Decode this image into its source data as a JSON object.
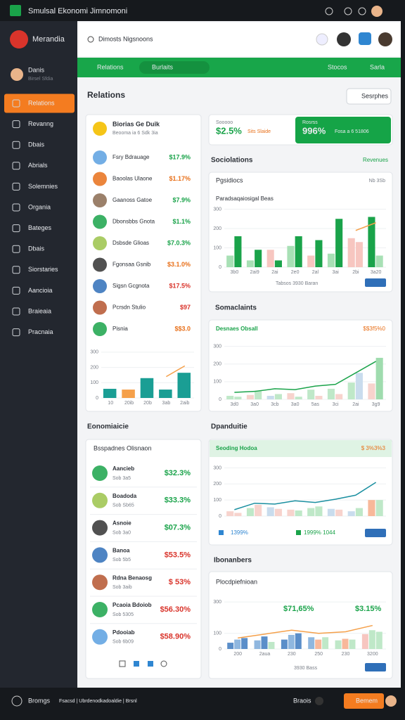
{
  "titlebar": {
    "title": "Smulsal Ekonomi Jimnomoni"
  },
  "sidebar": {
    "brand": "Merandia",
    "user": {
      "name": "Danis",
      "role": "Birsel Sfdia"
    },
    "items": [
      "Relations",
      "Revanng",
      "Dbais",
      "Abrials",
      "Solemnies",
      "Organia",
      "Bateges",
      "Dbais",
      "Siorstaries",
      "Aancioia",
      "Braieaia",
      "Pracnaia"
    ]
  },
  "topbar": {
    "search": "Dimosts Nigsnoons"
  },
  "greenbar": {
    "left": "Relations",
    "pill": "Burlaits",
    "right": [
      "Stocos",
      "Sarla"
    ]
  },
  "page": {
    "title": "Relations",
    "search": "Sesrphes"
  },
  "contacts": {
    "title": "Biorias Ge Duik",
    "subtitle": "Beooma ia 6 Sdk 3ia",
    "rows": [
      {
        "name": "Fsry Bdrauage",
        "value": "$17.9%",
        "color": "#1aa34a"
      },
      {
        "name": "Baoolas Ulaone",
        "value": "$1.17%",
        "color": "#e8701a"
      },
      {
        "name": "Gaanoss Gatoe",
        "value": "$7.9%",
        "color": "#1aa34a"
      },
      {
        "name": "Dbonsbbs Gnota",
        "value": "$1.1%",
        "color": "#1aa34a"
      },
      {
        "name": "Dsbsde Glioas",
        "value": "$7.0.3%",
        "color": "#1aa34a"
      },
      {
        "name": "Fgonsaa Gsnib",
        "value": "$3.1.0%",
        "color": "#e8701a"
      },
      {
        "name": "Sigsn Gcgnota",
        "value": "$17.5%",
        "color": "#d9342b"
      },
      {
        "name": "Pcrsdn Stulio",
        "value": "$97",
        "color": "#d9342b"
      },
      {
        "name": "Pisnia",
        "value": "$$3.0",
        "color": "#e8701a"
      }
    ],
    "chart": {
      "categories": [
        "10",
        "20ib",
        "20b",
        "3ab",
        "2aib"
      ],
      "ylim": [
        0,
        350
      ],
      "yticks": [
        0,
        100,
        200,
        300
      ],
      "bars": {
        "values": [
          60,
          55,
          130,
          55,
          165
        ],
        "colors": [
          "#1a9e94",
          "#f5a04a",
          "#1a9e94",
          "#1a9e94",
          "#1a9e94"
        ]
      },
      "line": {
        "values": [
          null,
          null,
          null,
          140,
          210
        ],
        "color": "#f5a04a"
      }
    }
  },
  "stats": {
    "left": {
      "label": "Sooooo",
      "value": "$2.5%",
      "note": "Sits Slaide"
    },
    "right": {
      "label": "Rosrss",
      "value": "996%",
      "note": "Fosa a 6 51806"
    }
  },
  "sociolations": {
    "title": "Sociolations",
    "link": "Revenues",
    "header": "Pgsidiocs",
    "header_right": "Nb 3Sb",
    "subtitle": "Paradsaqaiosigal Beas",
    "legend": "Tabsos 3930 Baran",
    "chart": {
      "categories": [
        "3b0",
        "2ai9",
        "2ai",
        "2e0",
        "2al",
        "3ai",
        "2bi",
        "3a20"
      ],
      "ylim": [
        0,
        320
      ],
      "yticks": [
        0,
        100,
        200,
        300
      ],
      "bars": {
        "values": [
          60,
          160,
          35,
          90,
          90,
          35,
          110,
          160,
          60,
          140,
          70,
          250,
          150,
          130,
          260,
          60
        ],
        "colors": [
          "#a8e0b5",
          "#1aa34a",
          "#a8e0b5",
          "#1aa34a",
          "#f7c6c0",
          "#1aa34a",
          "#a8e0b5",
          "#1aa34a",
          "#f7c6c0",
          "#1aa34a",
          "#a8e0b5",
          "#1aa34a",
          "#f7c6c0",
          "#f7c6c0",
          "#1aa34a",
          "#a8e0b5"
        ]
      },
      "line": {
        "values": [
          null,
          null,
          null,
          null,
          null,
          null,
          190,
          230
        ],
        "color": "#f5a04a"
      }
    }
  },
  "somaclaints": {
    "title": "Somaclaints",
    "header": "Desnaes Obsall",
    "header_right": "$$3f5%0",
    "chart": {
      "categories": [
        "3d0",
        "3a0",
        "3cb",
        "3a0",
        "5as",
        "3ci",
        "2ai",
        "3g9"
      ],
      "ylim": [
        0,
        350
      ],
      "yticks": [
        0,
        100,
        200,
        300
      ],
      "bars": {
        "values": [
          20,
          15,
          25,
          50,
          20,
          30,
          35,
          15,
          55,
          20,
          60,
          30,
          95,
          150,
          90,
          235
        ],
        "colors": [
          "#bfe8c8",
          "#bfe8c8",
          "#f7d3cd",
          "#bfe8c8",
          "#c9dced",
          "#bfe8c8",
          "#f7d3cd",
          "#bfe8c8",
          "#bfe8c8",
          "#f7d3cd",
          "#bfe8c8",
          "#f7d3cd",
          "#bfe8c8",
          "#c9dced",
          "#f7d3cd",
          "#9fdcae"
        ]
      },
      "line": {
        "values": [
          40,
          45,
          60,
          55,
          75,
          85,
          150,
          215
        ],
        "color": "#1aa34a"
      }
    }
  },
  "economia": {
    "title": "Eonomiaicie",
    "header": "Bsspadnes Olisnaon",
    "rows": [
      {
        "name": "Aancieb",
        "sub": "Sob 3a5",
        "value": "$32.3%",
        "color": "#1aa34a"
      },
      {
        "name": "Boadoda",
        "sub": "Sob Sb65",
        "value": "$33.3%",
        "color": "#1aa34a"
      },
      {
        "name": "Asnoie",
        "sub": "Sob 3a0",
        "value": "$07.3%",
        "color": "#1aa34a"
      },
      {
        "name": "Banoa",
        "sub": "Sob 5b5",
        "value": "$53.5%",
        "color": "#d9342b"
      },
      {
        "name": "Rdna Benaosg",
        "sub": "Sob 3aib",
        "value": "$ 53%",
        "color": "#d9342b"
      },
      {
        "name": "Pcaoia Bdoiob",
        "sub": "Sob 5305",
        "value": "$56.30%",
        "color": "#d9342b"
      },
      {
        "name": "Pdooiab",
        "sub": "Sob 6b09",
        "value": "$58.90%",
        "color": "#d9342b"
      }
    ]
  },
  "dpanduitie": {
    "title": "Dpanduitie",
    "header": "Seoding Hodoa",
    "header_right": "$ 3%3%3",
    "legend": [
      "1399%",
      "1999% 1044"
    ],
    "chart": {
      "categories": [
        null,
        null,
        null,
        null,
        null,
        null,
        null,
        null
      ],
      "ylim": [
        0,
        350
      ],
      "yticks": [
        0,
        100,
        200,
        300
      ],
      "bars": {
        "values": [
          30,
          20,
          50,
          70,
          55,
          45,
          40,
          35,
          50,
          60,
          45,
          40,
          30,
          50,
          100,
          100
        ],
        "colors": [
          "#f7d3cd",
          "#f7d3cd",
          "#bfe8c8",
          "#f7d3cd",
          "#c9dced",
          "#f7d3cd",
          "#f7d3cd",
          "#bfe8c8",
          "#bfe8c8",
          "#bfe8c8",
          "#c9dced",
          "#f7d3cd",
          "#c9dced",
          "#bfe8c8",
          "#f8b89a",
          "#bfe8c8"
        ]
      },
      "line": {
        "values": [
          40,
          80,
          75,
          95,
          85,
          105,
          130,
          210
        ],
        "color": "#1a8fa0"
      }
    }
  },
  "ibonanbers": {
    "title": "Ibonanbers",
    "header": "Plocdpiefnioan",
    "annotations": [
      "$71,65%",
      "$3.15%"
    ],
    "legend": "3930 Bass",
    "chart": {
      "categories": [
        "200",
        "2aua",
        "230",
        "250",
        "230",
        "3200"
      ],
      "ylim": [
        0,
        350
      ],
      "yticks": [
        0,
        100,
        300
      ],
      "bars": {
        "values": [
          40,
          60,
          70,
          55,
          80,
          45,
          60,
          90,
          100,
          75,
          60,
          75,
          55,
          65,
          60,
          95,
          120,
          110
        ],
        "colors": [
          "#5a8ec9",
          "#8fb7df",
          "#5a8ec9",
          "#8fb7df",
          "#5a8ec9",
          "#bfe8c8",
          "#5a8ec9",
          "#8fb7df",
          "#5a8ec9",
          "#8fb7df",
          "#f8b89a",
          "#bfe8c8",
          "#bfe8c8",
          "#f8b89a",
          "#bfe8c8",
          "#f7c6c0",
          "#bfe8c8",
          "#bfe8c8"
        ]
      },
      "line": {
        "values": [
          70,
          95,
          120,
          100,
          110,
          150
        ],
        "color": "#f5a04a"
      }
    }
  },
  "footer": {
    "left": "Bromgs",
    "middle": "Fsacsd | Ubrdenodkadoaldie | Brsnl",
    "right": "Braois",
    "button": "Bemem"
  }
}
